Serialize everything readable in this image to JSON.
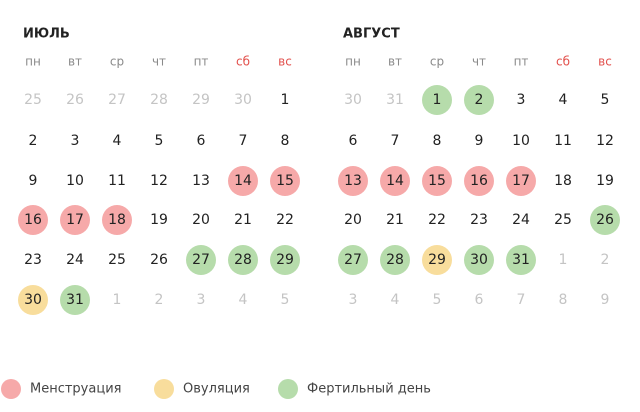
{
  "months": [
    {
      "title": "ИЮЛЬ",
      "weekdays": [
        {
          "label": "пн"
        },
        {
          "label": "вт"
        },
        {
          "label": "ср"
        },
        {
          "label": "чт"
        },
        {
          "label": "пт"
        },
        {
          "label": "сб",
          "color": "#e2504c"
        },
        {
          "label": "вс",
          "color": "#e2504c"
        }
      ],
      "weeks": [
        [
          {
            "day": 25,
            "text_color": "#c4c4c4"
          },
          {
            "day": 26,
            "text_color": "#c4c4c4"
          },
          {
            "day": 27,
            "text_color": "#c4c4c4"
          },
          {
            "day": 28,
            "text_color": "#c4c4c4"
          },
          {
            "day": 29,
            "text_color": "#c4c4c4"
          },
          {
            "day": 30,
            "text_color": "#c4c4c4"
          },
          {
            "day": 1
          }
        ],
        [
          {
            "day": 2
          },
          {
            "day": 3
          },
          {
            "day": 4
          },
          {
            "day": 5
          },
          {
            "day": 6
          },
          {
            "day": 7
          },
          {
            "day": 8
          }
        ],
        [
          {
            "day": 9
          },
          {
            "day": 10
          },
          {
            "day": 11
          },
          {
            "day": 12
          },
          {
            "day": 13
          },
          {
            "day": 14,
            "fill": "#f6a9a9"
          },
          {
            "day": 15,
            "fill": "#f6a9a9"
          }
        ],
        [
          {
            "day": 16,
            "fill": "#f6a9a9"
          },
          {
            "day": 17,
            "fill": "#f6a9a9"
          },
          {
            "day": 18,
            "fill": "#f6a9a9"
          },
          {
            "day": 19
          },
          {
            "day": 20
          },
          {
            "day": 21
          },
          {
            "day": 22
          }
        ],
        [
          {
            "day": 23
          },
          {
            "day": 24
          },
          {
            "day": 25
          },
          {
            "day": 26
          },
          {
            "day": 27,
            "fill": "#b6dcab"
          },
          {
            "day": 28,
            "fill": "#b6dcab"
          },
          {
            "day": 29,
            "fill": "#b6dcab"
          }
        ],
        [
          {
            "day": 30,
            "fill": "#f8dd9c"
          },
          {
            "day": 31,
            "fill": "#b6dcab"
          },
          {
            "day": 1,
            "text_color": "#c4c4c4"
          },
          {
            "day": 2,
            "text_color": "#c4c4c4"
          },
          {
            "day": 3,
            "text_color": "#c4c4c4"
          },
          {
            "day": 4,
            "text_color": "#c4c4c4"
          },
          {
            "day": 5,
            "text_color": "#c4c4c4"
          }
        ]
      ]
    },
    {
      "title": "АВГУСТ",
      "weekdays": [
        {
          "label": "пн"
        },
        {
          "label": "вт"
        },
        {
          "label": "ср"
        },
        {
          "label": "чт"
        },
        {
          "label": "пт"
        },
        {
          "label": "сб",
          "color": "#e2504c"
        },
        {
          "label": "вс",
          "color": "#e2504c"
        }
      ],
      "weeks": [
        [
          {
            "day": 30,
            "text_color": "#c4c4c4"
          },
          {
            "day": 31,
            "text_color": "#c4c4c4"
          },
          {
            "day": 1,
            "fill": "#b6dcab"
          },
          {
            "day": 2,
            "fill": "#b6dcab"
          },
          {
            "day": 3
          },
          {
            "day": 4
          },
          {
            "day": 5
          }
        ],
        [
          {
            "day": 6
          },
          {
            "day": 7
          },
          {
            "day": 8
          },
          {
            "day": 9
          },
          {
            "day": 10
          },
          {
            "day": 11
          },
          {
            "day": 12
          }
        ],
        [
          {
            "day": 13,
            "fill": "#f6a9a9"
          },
          {
            "day": 14,
            "fill": "#f6a9a9"
          },
          {
            "day": 15,
            "fill": "#f6a9a9"
          },
          {
            "day": 16,
            "fill": "#f6a9a9"
          },
          {
            "day": 17,
            "fill": "#f6a9a9"
          },
          {
            "day": 18
          },
          {
            "day": 19
          }
        ],
        [
          {
            "day": 20
          },
          {
            "day": 21
          },
          {
            "day": 22
          },
          {
            "day": 23
          },
          {
            "day": 24
          },
          {
            "day": 25
          },
          {
            "day": 26,
            "fill": "#b6dcab"
          }
        ],
        [
          {
            "day": 27,
            "fill": "#b6dcab"
          },
          {
            "day": 28,
            "fill": "#b6dcab"
          },
          {
            "day": 29,
            "fill": "#f8dd9c"
          },
          {
            "day": 30,
            "fill": "#b6dcab"
          },
          {
            "day": 31,
            "fill": "#b6dcab"
          },
          {
            "day": 1,
            "text_color": "#c4c4c4"
          },
          {
            "day": 2,
            "text_color": "#c4c4c4"
          }
        ],
        [
          {
            "day": 3,
            "text_color": "#c4c4c4"
          },
          {
            "day": 4,
            "text_color": "#c4c4c4"
          },
          {
            "day": 5,
            "text_color": "#c4c4c4"
          },
          {
            "day": 6,
            "text_color": "#c4c4c4"
          },
          {
            "day": 7,
            "text_color": "#c4c4c4"
          },
          {
            "day": 8,
            "text_color": "#c4c4c4"
          },
          {
            "day": 9,
            "text_color": "#c4c4c4"
          }
        ]
      ]
    }
  ],
  "legend": [
    {
      "label": "Менструация",
      "color": "#f6a9a9"
    },
    {
      "label": "Овуляция",
      "color": "#f8dd9c"
    },
    {
      "label": "Фертильный день",
      "color": "#b6dcab"
    }
  ]
}
